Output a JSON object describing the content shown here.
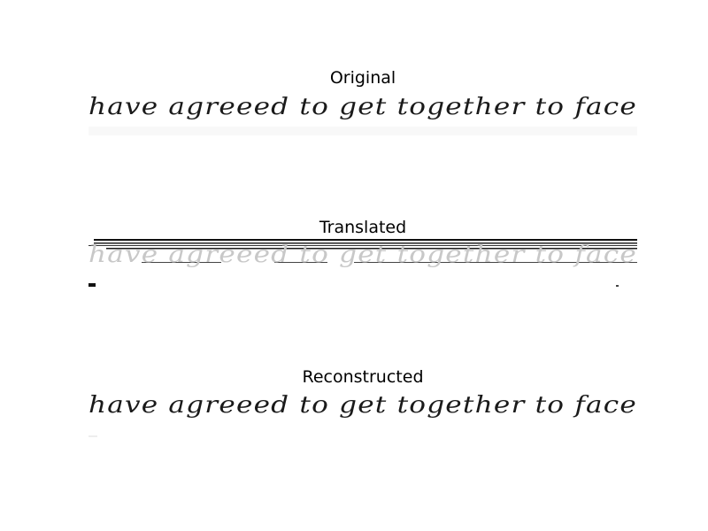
{
  "panels": [
    {
      "id": "original",
      "title": "Original",
      "image_text": "have agreeed to get together to face"
    },
    {
      "id": "translated",
      "title": "Translated",
      "image_text": "have agreeed to get together to face"
    },
    {
      "id": "reconstructed",
      "title": "Reconstructed",
      "image_text": "have agreeed to get together to face"
    }
  ],
  "colors": {
    "ink": "#1a1a1a",
    "faint_ink": "#c8c8c8",
    "background": "#ffffff"
  }
}
